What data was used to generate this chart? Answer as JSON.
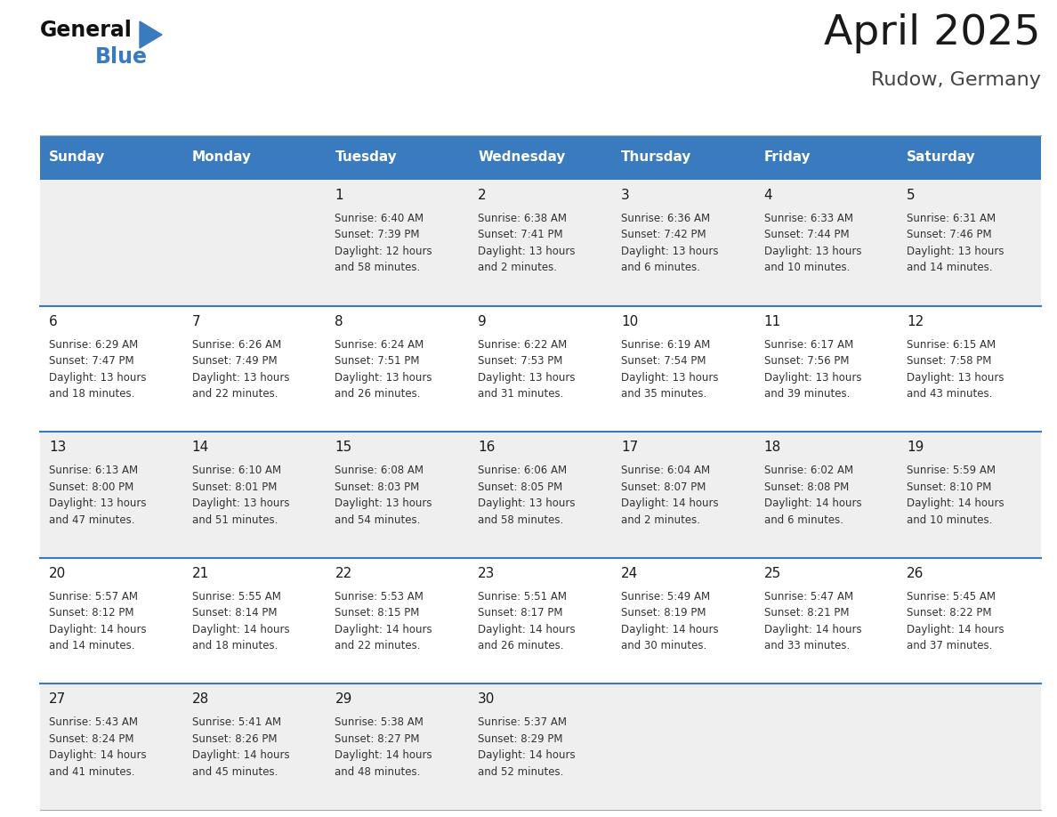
{
  "title": "April 2025",
  "subtitle": "Rudow, Germany",
  "header_color": "#3a7abf",
  "header_text_color": "#ffffff",
  "cell_bg_even": "#efefef",
  "cell_bg_odd": "#ffffff",
  "separator_color": "#3a7abf",
  "days_of_week": [
    "Sunday",
    "Monday",
    "Tuesday",
    "Wednesday",
    "Thursday",
    "Friday",
    "Saturday"
  ],
  "weeks": [
    [
      {
        "day": "",
        "sunrise": "",
        "sunset": "",
        "daylight_line1": "",
        "daylight_line2": ""
      },
      {
        "day": "",
        "sunrise": "",
        "sunset": "",
        "daylight_line1": "",
        "daylight_line2": ""
      },
      {
        "day": "1",
        "sunrise": "6:40 AM",
        "sunset": "7:39 PM",
        "daylight_line1": "12 hours",
        "daylight_line2": "and 58 minutes."
      },
      {
        "day": "2",
        "sunrise": "6:38 AM",
        "sunset": "7:41 PM",
        "daylight_line1": "13 hours",
        "daylight_line2": "and 2 minutes."
      },
      {
        "day": "3",
        "sunrise": "6:36 AM",
        "sunset": "7:42 PM",
        "daylight_line1": "13 hours",
        "daylight_line2": "and 6 minutes."
      },
      {
        "day": "4",
        "sunrise": "6:33 AM",
        "sunset": "7:44 PM",
        "daylight_line1": "13 hours",
        "daylight_line2": "and 10 minutes."
      },
      {
        "day": "5",
        "sunrise": "6:31 AM",
        "sunset": "7:46 PM",
        "daylight_line1": "13 hours",
        "daylight_line2": "and 14 minutes."
      }
    ],
    [
      {
        "day": "6",
        "sunrise": "6:29 AM",
        "sunset": "7:47 PM",
        "daylight_line1": "13 hours",
        "daylight_line2": "and 18 minutes."
      },
      {
        "day": "7",
        "sunrise": "6:26 AM",
        "sunset": "7:49 PM",
        "daylight_line1": "13 hours",
        "daylight_line2": "and 22 minutes."
      },
      {
        "day": "8",
        "sunrise": "6:24 AM",
        "sunset": "7:51 PM",
        "daylight_line1": "13 hours",
        "daylight_line2": "and 26 minutes."
      },
      {
        "day": "9",
        "sunrise": "6:22 AM",
        "sunset": "7:53 PM",
        "daylight_line1": "13 hours",
        "daylight_line2": "and 31 minutes."
      },
      {
        "day": "10",
        "sunrise": "6:19 AM",
        "sunset": "7:54 PM",
        "daylight_line1": "13 hours",
        "daylight_line2": "and 35 minutes."
      },
      {
        "day": "11",
        "sunrise": "6:17 AM",
        "sunset": "7:56 PM",
        "daylight_line1": "13 hours",
        "daylight_line2": "and 39 minutes."
      },
      {
        "day": "12",
        "sunrise": "6:15 AM",
        "sunset": "7:58 PM",
        "daylight_line1": "13 hours",
        "daylight_line2": "and 43 minutes."
      }
    ],
    [
      {
        "day": "13",
        "sunrise": "6:13 AM",
        "sunset": "8:00 PM",
        "daylight_line1": "13 hours",
        "daylight_line2": "and 47 minutes."
      },
      {
        "day": "14",
        "sunrise": "6:10 AM",
        "sunset": "8:01 PM",
        "daylight_line1": "13 hours",
        "daylight_line2": "and 51 minutes."
      },
      {
        "day": "15",
        "sunrise": "6:08 AM",
        "sunset": "8:03 PM",
        "daylight_line1": "13 hours",
        "daylight_line2": "and 54 minutes."
      },
      {
        "day": "16",
        "sunrise": "6:06 AM",
        "sunset": "8:05 PM",
        "daylight_line1": "13 hours",
        "daylight_line2": "and 58 minutes."
      },
      {
        "day": "17",
        "sunrise": "6:04 AM",
        "sunset": "8:07 PM",
        "daylight_line1": "14 hours",
        "daylight_line2": "and 2 minutes."
      },
      {
        "day": "18",
        "sunrise": "6:02 AM",
        "sunset": "8:08 PM",
        "daylight_line1": "14 hours",
        "daylight_line2": "and 6 minutes."
      },
      {
        "day": "19",
        "sunrise": "5:59 AM",
        "sunset": "8:10 PM",
        "daylight_line1": "14 hours",
        "daylight_line2": "and 10 minutes."
      }
    ],
    [
      {
        "day": "20",
        "sunrise": "5:57 AM",
        "sunset": "8:12 PM",
        "daylight_line1": "14 hours",
        "daylight_line2": "and 14 minutes."
      },
      {
        "day": "21",
        "sunrise": "5:55 AM",
        "sunset": "8:14 PM",
        "daylight_line1": "14 hours",
        "daylight_line2": "and 18 minutes."
      },
      {
        "day": "22",
        "sunrise": "5:53 AM",
        "sunset": "8:15 PM",
        "daylight_line1": "14 hours",
        "daylight_line2": "and 22 minutes."
      },
      {
        "day": "23",
        "sunrise": "5:51 AM",
        "sunset": "8:17 PM",
        "daylight_line1": "14 hours",
        "daylight_line2": "and 26 minutes."
      },
      {
        "day": "24",
        "sunrise": "5:49 AM",
        "sunset": "8:19 PM",
        "daylight_line1": "14 hours",
        "daylight_line2": "and 30 minutes."
      },
      {
        "day": "25",
        "sunrise": "5:47 AM",
        "sunset": "8:21 PM",
        "daylight_line1": "14 hours",
        "daylight_line2": "and 33 minutes."
      },
      {
        "day": "26",
        "sunrise": "5:45 AM",
        "sunset": "8:22 PM",
        "daylight_line1": "14 hours",
        "daylight_line2": "and 37 minutes."
      }
    ],
    [
      {
        "day": "27",
        "sunrise": "5:43 AM",
        "sunset": "8:24 PM",
        "daylight_line1": "14 hours",
        "daylight_line2": "and 41 minutes."
      },
      {
        "day": "28",
        "sunrise": "5:41 AM",
        "sunset": "8:26 PM",
        "daylight_line1": "14 hours",
        "daylight_line2": "and 45 minutes."
      },
      {
        "day": "29",
        "sunrise": "5:38 AM",
        "sunset": "8:27 PM",
        "daylight_line1": "14 hours",
        "daylight_line2": "and 48 minutes."
      },
      {
        "day": "30",
        "sunrise": "5:37 AM",
        "sunset": "8:29 PM",
        "daylight_line1": "14 hours",
        "daylight_line2": "and 52 minutes."
      },
      {
        "day": "",
        "sunrise": "",
        "sunset": "",
        "daylight_line1": "",
        "daylight_line2": ""
      },
      {
        "day": "",
        "sunrise": "",
        "sunset": "",
        "daylight_line1": "",
        "daylight_line2": ""
      },
      {
        "day": "",
        "sunrise": "",
        "sunset": "",
        "daylight_line1": "",
        "daylight_line2": ""
      }
    ]
  ],
  "fig_width": 11.88,
  "fig_height": 9.18,
  "dpi": 100
}
